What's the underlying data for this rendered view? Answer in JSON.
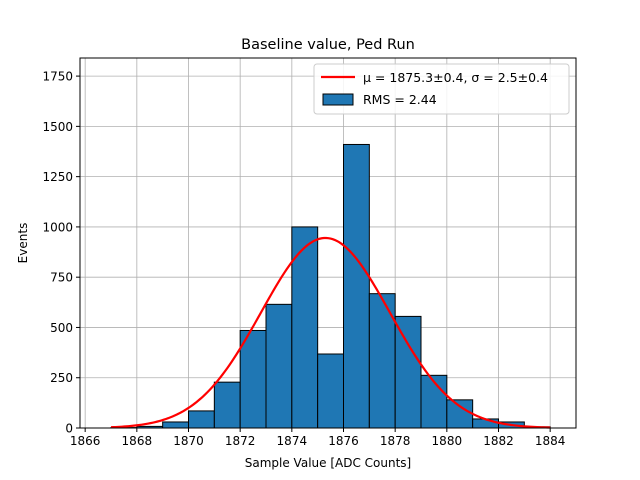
{
  "chart_data": {
    "type": "bar",
    "title": "Baseline value, Ped Run",
    "xlabel": "Sample Value [ADC Counts]",
    "ylabel": "Events",
    "xlim": [
      1865.8,
      1885.0
    ],
    "ylim": [
      0,
      1840
    ],
    "xticks": [
      1866,
      1868,
      1870,
      1872,
      1874,
      1876,
      1878,
      1880,
      1882,
      1884
    ],
    "yticks": [
      0,
      250,
      500,
      750,
      1000,
      1250,
      1500,
      1750
    ],
    "grid": true,
    "bin_edges": [
      1867,
      1868,
      1869,
      1870,
      1871,
      1872,
      1873,
      1874,
      1875,
      1876,
      1877,
      1878,
      1879,
      1880,
      1881,
      1882,
      1883,
      1884
    ],
    "values": [
      2,
      8,
      30,
      85,
      228,
      485,
      615,
      1000,
      368,
      1410,
      668,
      555,
      262,
      140,
      45,
      30,
      6
    ],
    "bar_color": "#1f77b4",
    "fit": {
      "mu": 1875.3,
      "sigma": 2.5,
      "amplitude": 945,
      "x_range": [
        1867,
        1884
      ],
      "color": "#ff0000"
    },
    "legend": {
      "position": "upper right",
      "fit_label": "μ = 1875.3±0.4, σ = 2.5±0.4",
      "hist_label": "RMS = 2.44"
    }
  }
}
